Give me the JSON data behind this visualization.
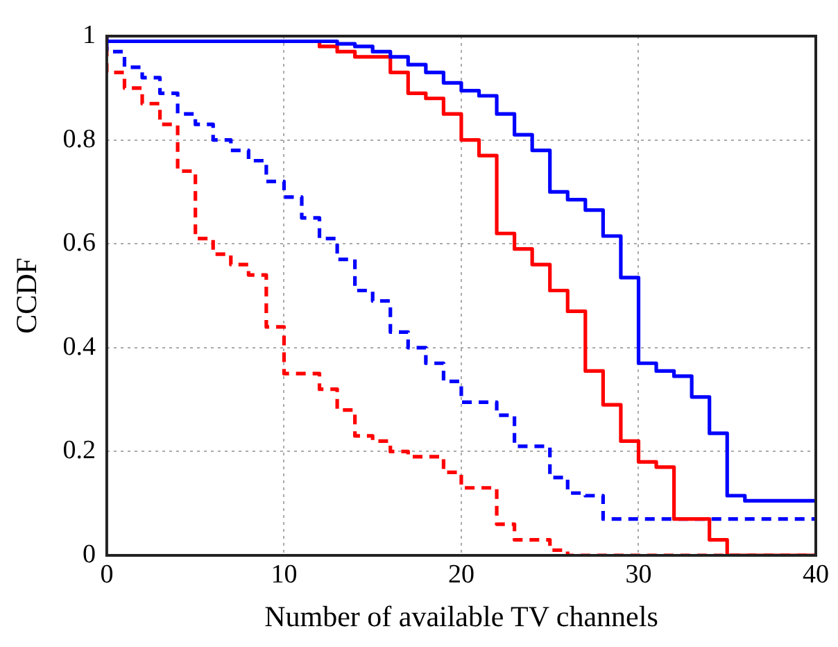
{
  "chart_data": {
    "type": "step",
    "xlabel": "Number of available TV channels",
    "ylabel": "CCDF",
    "xlim": [
      0,
      40
    ],
    "ylim": [
      0,
      1
    ],
    "xticks": [
      0,
      10,
      20,
      30,
      40
    ],
    "yticks": [
      0,
      0.2,
      0.4,
      0.6,
      0.8,
      1
    ],
    "grid": true,
    "legend": false,
    "marker": "none",
    "series": [
      {
        "color": "#0000ff",
        "line_style": "solid",
        "x": [
          0,
          13,
          14,
          15,
          16,
          17,
          18,
          19,
          20,
          21,
          22,
          23,
          24,
          25,
          26,
          27,
          28,
          29,
          30,
          31,
          32,
          33,
          34,
          35,
          36,
          39,
          40
        ],
        "values": [
          1,
          0.99,
          0.985,
          0.98,
          0.97,
          0.96,
          0.945,
          0.93,
          0.91,
          0.895,
          0.885,
          0.85,
          0.81,
          0.78,
          0.7,
          0.685,
          0.665,
          0.615,
          0.535,
          0.37,
          0.355,
          0.345,
          0.305,
          0.235,
          0.115,
          0.105,
          0.105
        ]
      },
      {
        "color": "#ff0000",
        "line_style": "solid",
        "x": [
          0,
          12,
          13,
          14,
          16,
          17,
          18,
          19,
          20,
          21,
          22,
          23,
          24,
          25,
          26,
          27,
          28,
          29,
          30,
          31,
          32,
          34,
          35,
          36,
          40
        ],
        "values": [
          1,
          0.99,
          0.98,
          0.97,
          0.96,
          0.93,
          0.89,
          0.88,
          0.85,
          0.8,
          0.77,
          0.62,
          0.59,
          0.56,
          0.51,
          0.47,
          0.355,
          0.29,
          0.22,
          0.18,
          0.17,
          0.07,
          0.03,
          0,
          0
        ]
      },
      {
        "color": "#0000ff",
        "line_style": "dashed",
        "x": [
          0,
          1,
          2,
          3,
          4,
          5,
          6,
          7,
          8,
          9,
          10,
          11,
          12,
          13,
          14,
          15,
          16,
          17,
          18,
          19,
          20,
          22,
          23,
          25,
          26,
          27,
          28,
          37,
          40
        ],
        "values": [
          0.99,
          0.97,
          0.94,
          0.92,
          0.89,
          0.85,
          0.83,
          0.8,
          0.78,
          0.76,
          0.72,
          0.69,
          0.65,
          0.61,
          0.57,
          0.51,
          0.49,
          0.43,
          0.4,
          0.37,
          0.335,
          0.295,
          0.27,
          0.21,
          0.15,
          0.12,
          0.115,
          0.07,
          0.07
        ]
      },
      {
        "color": "#ff0000",
        "line_style": "dashed",
        "x": [
          0,
          1,
          2,
          3,
          4,
          5,
          6,
          7,
          8,
          9,
          10,
          12,
          13,
          14,
          15,
          16,
          17,
          18,
          19,
          20,
          22,
          23,
          25,
          26,
          27,
          40
        ],
        "values": [
          0.98,
          0.93,
          0.9,
          0.87,
          0.83,
          0.74,
          0.61,
          0.58,
          0.56,
          0.54,
          0.44,
          0.35,
          0.32,
          0.28,
          0.23,
          0.22,
          0.2,
          0.19,
          0.19,
          0.16,
          0.13,
          0.06,
          0.03,
          0.01,
          0,
          0
        ]
      }
    ]
  }
}
